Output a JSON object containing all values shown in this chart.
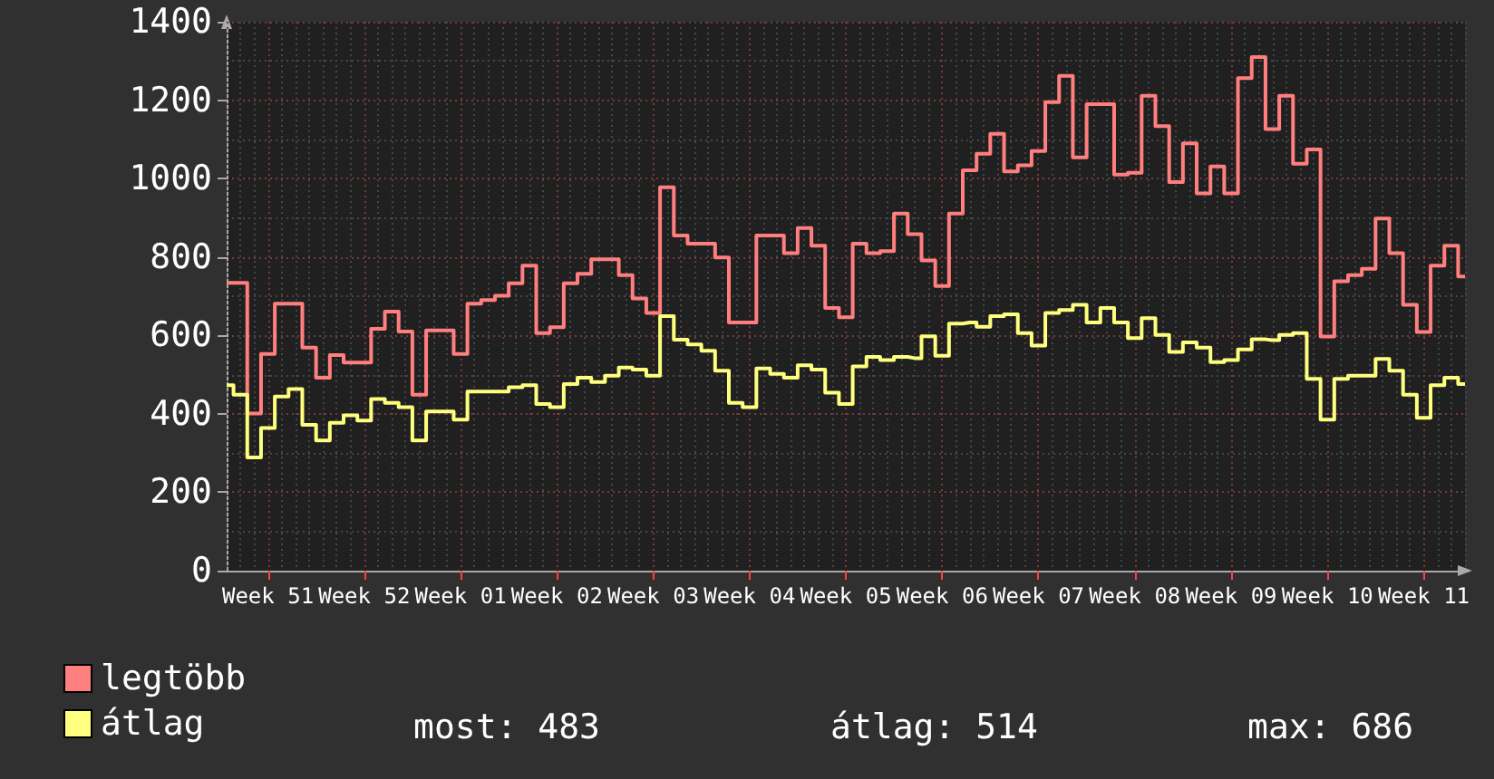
{
  "chart_data": {
    "type": "step",
    "categories": [
      null,
      null,
      null,
      "Week 51",
      null,
      null,
      null,
      null,
      null,
      null,
      "Week 52",
      null,
      null,
      null,
      null,
      null,
      null,
      "Week 01",
      null,
      null,
      null,
      null,
      null,
      null,
      "Week 02",
      null,
      null,
      null,
      null,
      null,
      null,
      "Week 03",
      null,
      null,
      null,
      null,
      null,
      null,
      "Week 04",
      null,
      null,
      null,
      null,
      null,
      null,
      "Week 05",
      null,
      null,
      null,
      null,
      null,
      null,
      "Week 06",
      null,
      null,
      null,
      null,
      null,
      null,
      "Week 07",
      null,
      null,
      null,
      null,
      null,
      null,
      "Week 08",
      null,
      null,
      null,
      null,
      null,
      null,
      "Week 09",
      null,
      null,
      null,
      null,
      null,
      null,
      "Week 10",
      null,
      null,
      null,
      null,
      null,
      null,
      "Week 11",
      null,
      null,
      null
    ],
    "ylim": [
      0,
      1400
    ],
    "yticks": [
      0,
      200,
      400,
      600,
      800,
      1000,
      1200,
      1400
    ],
    "grid": true,
    "legend": "bottom left",
    "annotations": [
      "most: 483",
      "átlag: 514",
      "max: 686"
    ],
    "series": [
      {
        "name": "legtöbb",
        "color": "#ff7f7f",
        "values": [
          734,
          734,
          401,
          553,
          681,
          681,
          569,
          492,
          550,
          531,
          531,
          617,
          661,
          610,
          449,
          613,
          613,
          553,
          681,
          690,
          701,
          733,
          778,
          606,
          621,
          733,
          757,
          794,
          794,
          754,
          694,
          657,
          978,
          855,
          834,
          834,
          799,
          633,
          633,
          855,
          855,
          810,
          874,
          829,
          670,
          646,
          834,
          810,
          815,
          911,
          858,
          791,
          726,
          911,
          1021,
          1063,
          1114,
          1018,
          1034,
          1070,
          1195,
          1262,
          1054,
          1190,
          1190,
          1010,
          1015,
          1211,
          1134,
          991,
          1090,
          962,
          1031,
          962,
          1256,
          1310,
          1126,
          1211,
          1038,
          1074,
          597,
          738,
          754,
          770,
          898,
          810,
          678,
          609,
          778,
          829,
          750
        ]
      },
      {
        "name": "átlag",
        "color": "#ffff7f",
        "values": [
          473,
          449,
          289,
          364,
          444,
          463,
          372,
          332,
          377,
          396,
          383,
          438,
          428,
          417,
          332,
          406,
          406,
          385,
          457,
          457,
          457,
          468,
          473,
          425,
          417,
          476,
          492,
          481,
          497,
          518,
          513,
          497,
          649,
          589,
          577,
          561,
          510,
          428,
          417,
          516,
          502,
          492,
          524,
          513,
          454,
          425,
          521,
          545,
          537,
          545,
          542,
          598,
          548,
          630,
          633,
          622,
          649,
          654,
          606,
          574,
          657,
          665,
          678,
          633,
          670,
          633,
          593,
          644,
          601,
          558,
          582,
          569,
          532,
          537,
          564,
          590,
          588,
          601,
          606,
          489,
          385,
          489,
          497,
          497,
          540,
          510,
          449,
          390,
          473,
          492,
          476
        ]
      }
    ]
  }
}
